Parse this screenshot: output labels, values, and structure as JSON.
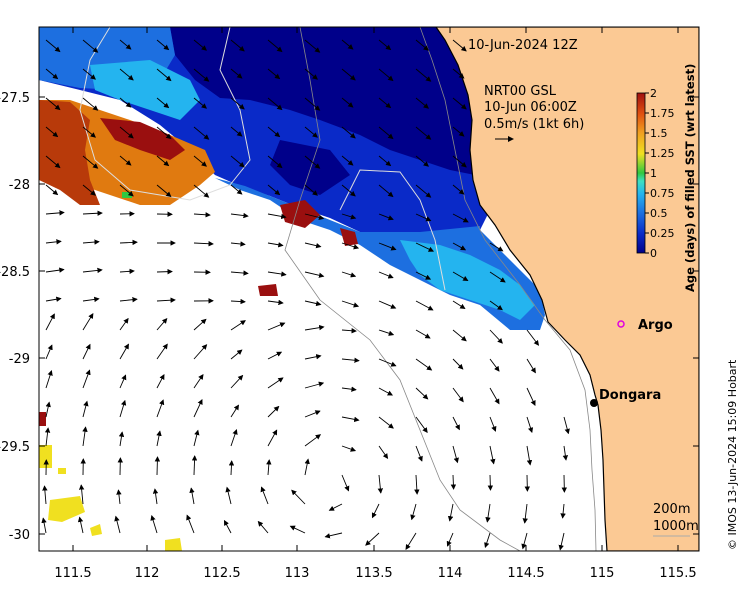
{
  "map": {
    "timestamp": "10-Jun-2024 12Z",
    "overlay_title": "NRT00 GSL",
    "overlay_time": "10-Jun 06:00Z",
    "overlay_scale": "0.5m/s (1kt 6h)",
    "x_ticks": [
      "111.5",
      "112",
      "112.5",
      "113",
      "113.5",
      "114",
      "114.5",
      "115",
      "115.5"
    ],
    "y_ticks": [
      "-27.5",
      "-28",
      "-28.5",
      "-29",
      "-29.5",
      "-30"
    ],
    "places": [
      {
        "name": "Argo",
        "color": "#e000e0"
      },
      {
        "name": "Dongara",
        "color": "#000000"
      }
    ],
    "isobaths": [
      "200m",
      "1000m"
    ],
    "credit": "© IMOS 13-Jun-2024 15:09 Hobart",
    "land_color": "#fbc994"
  },
  "colorbar": {
    "title": "Age (days) of filled SST (wrt latest)",
    "ticks": [
      "2",
      "1.75",
      "1.5",
      "1.25",
      "1",
      "0.75",
      "0.5",
      "0.25",
      "0"
    ],
    "colors": [
      "#00008a",
      "#0a2ac8",
      "#1d6fe0",
      "#24b4ef",
      "#3ee0c0",
      "#30c840",
      "#f0e020",
      "#f09020",
      "#e05010",
      "#a01010"
    ]
  }
}
